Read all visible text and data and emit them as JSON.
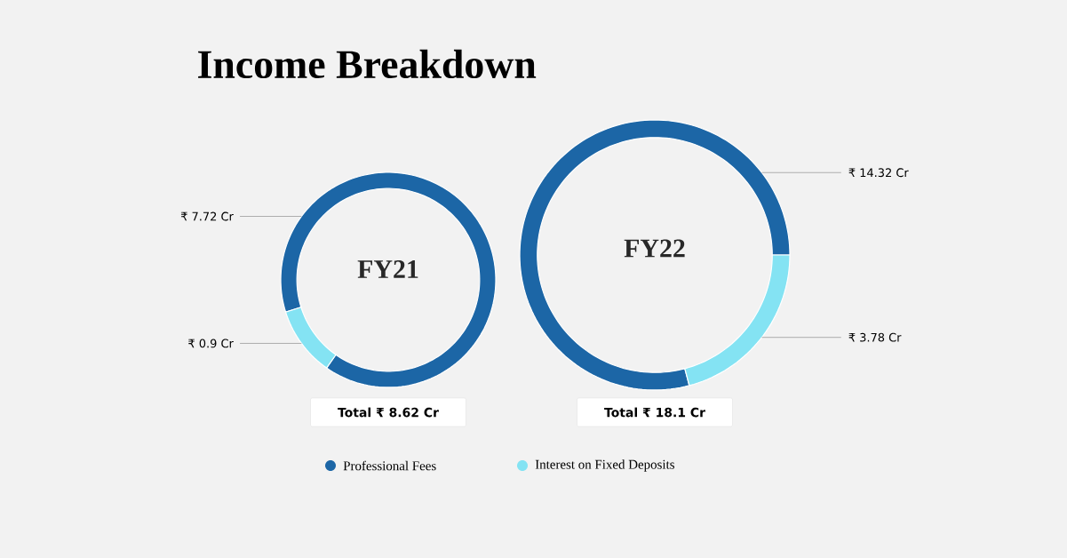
{
  "chart_data": [
    {
      "type": "donut",
      "title": "FY21",
      "categories": [
        "Professional Fees",
        "Interest on Fixed Deposits"
      ],
      "values": [
        7.72,
        0.9
      ],
      "colors": [
        "#1c66a6",
        "#84e3f3"
      ],
      "value_labels": [
        "₹ 7.72 Cr",
        "₹ 0.9 Cr"
      ],
      "annotations": [
        "Income Breakdown",
        "Total ₹ 8.62 Cr"
      ],
      "legend": "bottom"
    },
    {
      "type": "donut",
      "title": "FY22",
      "values": [
        14.32,
        3.78
      ],
      "colors": [
        "#1c66a6",
        "#84e3f3"
      ],
      "value_labels": [
        "₹ 14.32 Cr",
        "₹ 3.78 Cr"
      ],
      "annotations": [
        "Total ₹ 18.1 Cr"
      ]
    }
  ]
}
